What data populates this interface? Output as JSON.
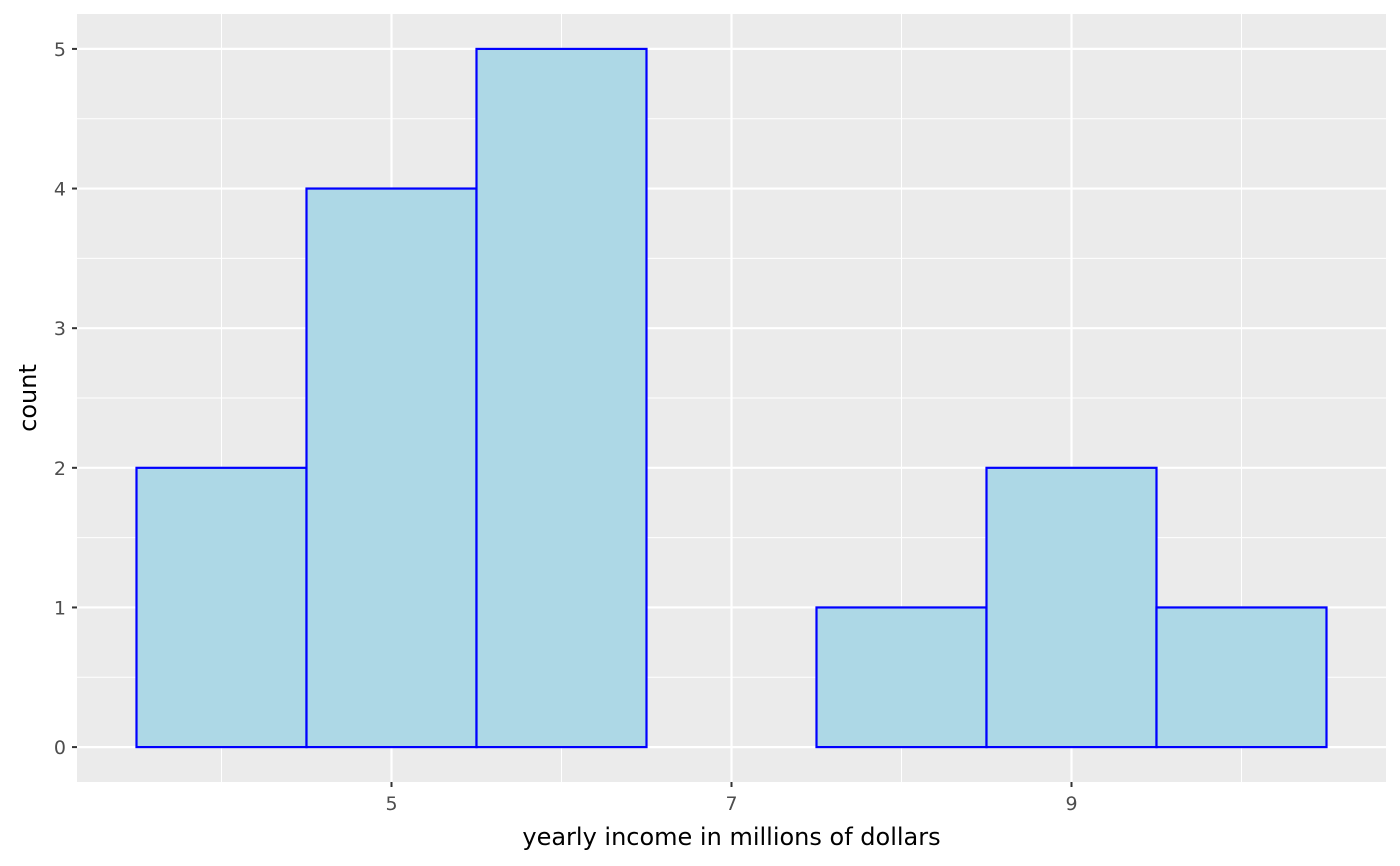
{
  "chart_data": {
    "type": "bar",
    "subtype": "histogram",
    "bins": [
      {
        "x_min": 3.5,
        "x_max": 4.5,
        "count": 2
      },
      {
        "x_min": 4.5,
        "x_max": 5.5,
        "count": 4
      },
      {
        "x_min": 5.5,
        "x_max": 6.5,
        "count": 5
      },
      {
        "x_min": 6.5,
        "x_max": 7.5,
        "count": 0
      },
      {
        "x_min": 7.5,
        "x_max": 8.5,
        "count": 1
      },
      {
        "x_min": 8.5,
        "x_max": 9.5,
        "count": 2
      },
      {
        "x_min": 9.5,
        "x_max": 10.5,
        "count": 1
      }
    ],
    "xlabel": "yearly income in millions of dollars",
    "ylabel": "count",
    "xlim": [
      3.15,
      10.85
    ],
    "ylim": [
      -0.25,
      5.25
    ],
    "x_ticks": [
      5,
      7,
      9
    ],
    "x_tick_labels": [
      "5",
      "7",
      "9"
    ],
    "x_minor_ticks": [
      4,
      6,
      8,
      10
    ],
    "y_ticks": [
      0,
      1,
      2,
      3,
      4,
      5
    ],
    "y_tick_labels": [
      "0",
      "1",
      "2",
      "3",
      "4",
      "5"
    ],
    "grid": true,
    "legend": "none",
    "colors": {
      "panel_background": "#ebebeb",
      "grid": "#ffffff",
      "bar_fill": "#add8e6",
      "bar_outline": "#0000ff",
      "tick_text": "#4d4d4d",
      "tick_mark": "#333333"
    }
  }
}
